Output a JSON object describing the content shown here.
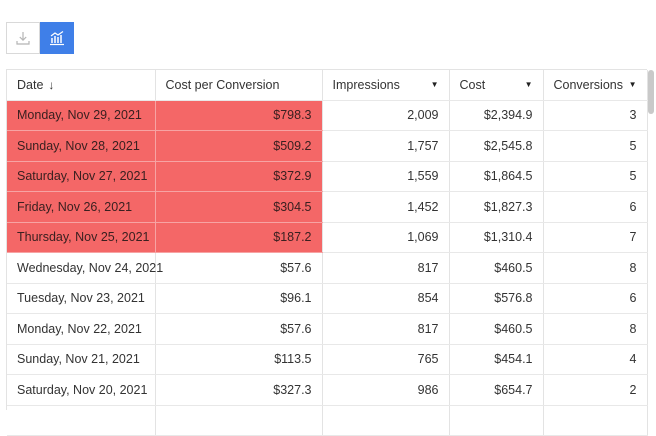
{
  "toolbar": {
    "buttons": [
      {
        "name": "download-icon",
        "active": false
      },
      {
        "name": "chart-icon",
        "active": true
      }
    ]
  },
  "table": {
    "columns": [
      {
        "label": "Date",
        "sort": "↓"
      },
      {
        "label": "Cost per Conversion"
      },
      {
        "label": "Impressions",
        "caret": "▼"
      },
      {
        "label": "Cost",
        "caret": "▼"
      },
      {
        "label": "Conversions",
        "caret": "▼"
      }
    ],
    "rows": [
      {
        "date": "Monday, Nov 29, 2021",
        "cpc": "$798.3",
        "impressions": "2,009",
        "cost": "$2,394.9",
        "conversions": "3",
        "highlight": true
      },
      {
        "date": "Sunday, Nov 28, 2021",
        "cpc": "$509.2",
        "impressions": "1,757",
        "cost": "$2,545.8",
        "conversions": "5",
        "highlight": true
      },
      {
        "date": "Saturday, Nov 27, 2021",
        "cpc": "$372.9",
        "impressions": "1,559",
        "cost": "$1,864.5",
        "conversions": "5",
        "highlight": true
      },
      {
        "date": "Friday, Nov 26, 2021",
        "cpc": "$304.5",
        "impressions": "1,452",
        "cost": "$1,827.3",
        "conversions": "6",
        "highlight": true
      },
      {
        "date": "Thursday, Nov 25, 2021",
        "cpc": "$187.2",
        "impressions": "1,069",
        "cost": "$1,310.4",
        "conversions": "7",
        "highlight": true
      },
      {
        "date": "Wednesday, Nov 24, 2021",
        "cpc": "$57.6",
        "impressions": "817",
        "cost": "$460.5",
        "conversions": "8",
        "highlight": false
      },
      {
        "date": "Tuesday, Nov 23, 2021",
        "cpc": "$96.1",
        "impressions": "854",
        "cost": "$576.8",
        "conversions": "6",
        "highlight": false
      },
      {
        "date": "Monday, Nov 22, 2021",
        "cpc": "$57.6",
        "impressions": "817",
        "cost": "$460.5",
        "conversions": "8",
        "highlight": false
      },
      {
        "date": "Sunday, Nov 21, 2021",
        "cpc": "$113.5",
        "impressions": "765",
        "cost": "$454.1",
        "conversions": "4",
        "highlight": false
      },
      {
        "date": "Saturday, Nov 20, 2021",
        "cpc": "$327.3",
        "impressions": "986",
        "cost": "$654.7",
        "conversions": "2",
        "highlight": false
      },
      {
        "date": "",
        "cpc": "",
        "impressions": "",
        "cost": "",
        "conversions": "",
        "highlight": false
      }
    ]
  },
  "colors": {
    "highlight": "#f46767",
    "accent": "#3f7fe8"
  }
}
